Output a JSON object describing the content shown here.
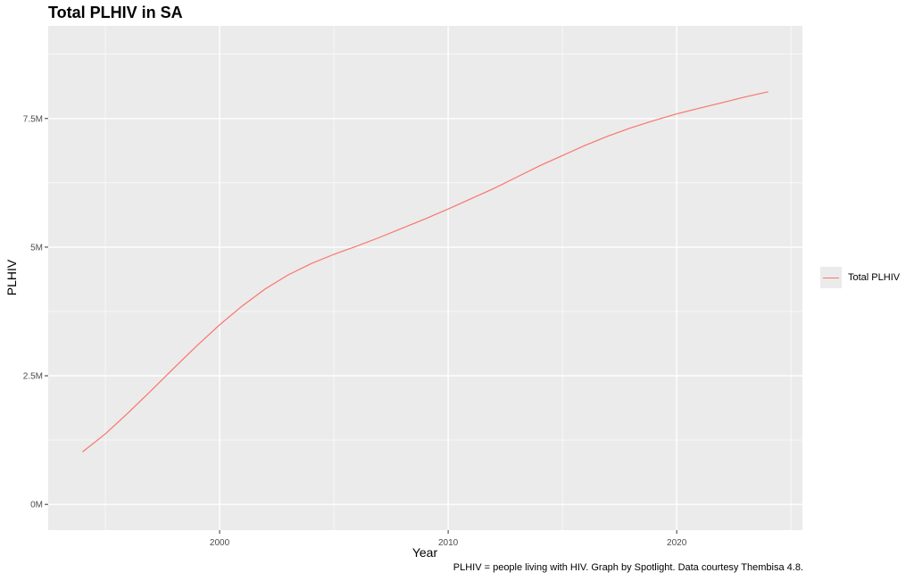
{
  "chart_data": {
    "type": "line",
    "title": "Total PLHIV in SA",
    "xlabel": "Year",
    "ylabel": "PLHIV",
    "caption": "PLHIV = people living with HIV. Graph by Spotlight. Data courtesy Thembisa 4.8.",
    "xlim": [
      1992.5,
      2025.5
    ],
    "ylim": [
      -0.5,
      9.3
    ],
    "x_ticks": [
      {
        "value": 2000,
        "label": "2000"
      },
      {
        "value": 2010,
        "label": "2010"
      },
      {
        "value": 2020,
        "label": "2020"
      }
    ],
    "y_ticks": [
      {
        "value": 0,
        "label": "0M"
      },
      {
        "value": 2.5,
        "label": "2.5M"
      },
      {
        "value": 5,
        "label": "5M"
      },
      {
        "value": 7.5,
        "label": "7.5M"
      }
    ],
    "grid": true,
    "legend_position": "right",
    "series": [
      {
        "name": "Total PLHIV",
        "color": "#f8766d",
        "x": [
          1994,
          1995,
          1996,
          1997,
          1998,
          1999,
          2000,
          2001,
          2002,
          2003,
          2004,
          2005,
          2006,
          2007,
          2008,
          2009,
          2010,
          2011,
          2012,
          2013,
          2014,
          2015,
          2016,
          2017,
          2018,
          2019,
          2020,
          2021,
          2022,
          2023,
          2024
        ],
        "y": [
          1.02,
          1.37,
          1.78,
          2.21,
          2.65,
          3.08,
          3.49,
          3.86,
          4.19,
          4.46,
          4.68,
          4.86,
          5.02,
          5.19,
          5.37,
          5.55,
          5.74,
          5.94,
          6.14,
          6.36,
          6.58,
          6.78,
          6.98,
          7.16,
          7.32,
          7.46,
          7.59,
          7.7,
          7.81,
          7.92,
          8.02
        ]
      }
    ]
  }
}
